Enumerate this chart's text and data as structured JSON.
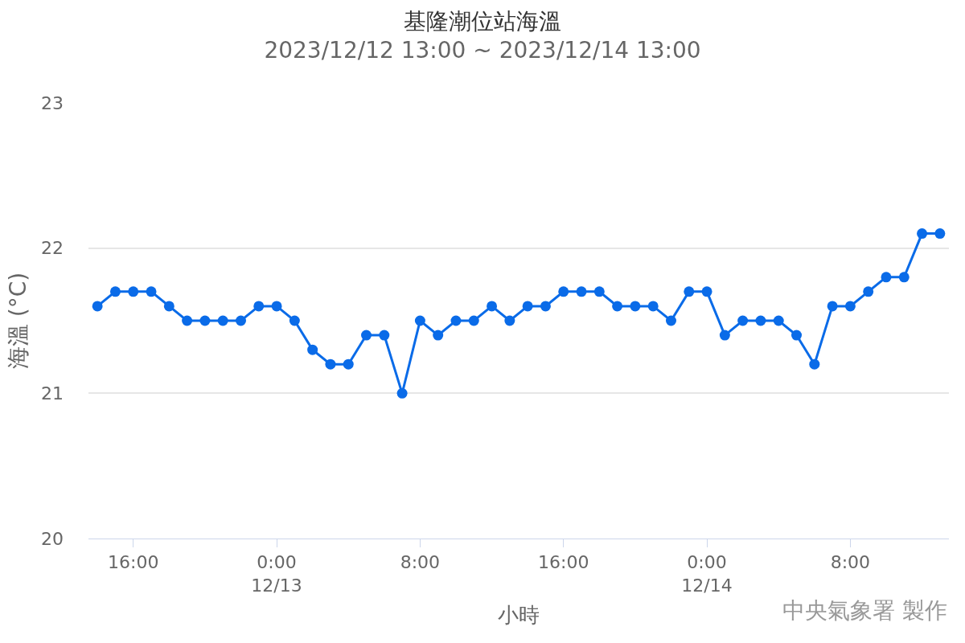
{
  "chart_data": {
    "type": "line",
    "title": "基隆潮位站海溫",
    "subtitle": "2023/12/12 13:00 ~ 2023/12/14 13:00",
    "xlabel": "小時",
    "ylabel": "海溫 (°C)",
    "x": [
      "2023-12-12T14:00",
      "2023-12-12T15:00",
      "2023-12-12T16:00",
      "2023-12-12T17:00",
      "2023-12-12T18:00",
      "2023-12-12T19:00",
      "2023-12-12T20:00",
      "2023-12-12T21:00",
      "2023-12-12T22:00",
      "2023-12-12T23:00",
      "2023-12-13T00:00",
      "2023-12-13T01:00",
      "2023-12-13T02:00",
      "2023-12-13T03:00",
      "2023-12-13T04:00",
      "2023-12-13T05:00",
      "2023-12-13T06:00",
      "2023-12-13T07:00",
      "2023-12-13T08:00",
      "2023-12-13T09:00",
      "2023-12-13T10:00",
      "2023-12-13T11:00",
      "2023-12-13T12:00",
      "2023-12-13T13:00",
      "2023-12-13T14:00",
      "2023-12-13T15:00",
      "2023-12-13T16:00",
      "2023-12-13T17:00",
      "2023-12-13T18:00",
      "2023-12-13T19:00",
      "2023-12-13T20:00",
      "2023-12-13T21:00",
      "2023-12-13T22:00",
      "2023-12-13T23:00",
      "2023-12-14T00:00",
      "2023-12-14T01:00",
      "2023-12-14T02:00",
      "2023-12-14T03:00",
      "2023-12-14T04:00",
      "2023-12-14T05:00",
      "2023-12-14T06:00",
      "2023-12-14T07:00",
      "2023-12-14T08:00",
      "2023-12-14T09:00",
      "2023-12-14T10:00",
      "2023-12-14T11:00",
      "2023-12-14T12:00",
      "2023-12-14T13:00"
    ],
    "series": [
      {
        "color": "#0a6be8",
        "values": [
          21.6,
          21.7,
          21.7,
          21.7,
          21.6,
          21.5,
          21.5,
          21.5,
          21.5,
          21.6,
          21.6,
          21.5,
          21.3,
          21.2,
          21.2,
          21.4,
          21.4,
          21.0,
          21.5,
          21.4,
          21.5,
          21.5,
          21.6,
          21.5,
          21.6,
          21.6,
          21.7,
          21.7,
          21.7,
          21.6,
          21.6,
          21.6,
          21.5,
          21.7,
          21.7,
          21.4,
          21.5,
          21.5,
          21.5,
          21.4,
          21.2,
          21.6,
          21.6,
          21.7,
          21.8,
          21.8,
          22.1,
          22.1
        ]
      }
    ],
    "xlim": [
      "2023-12-12T13:30",
      "2023-12-14T13:30"
    ],
    "xticks": [
      {
        "value": "2023-12-12T16:00",
        "label": "16:00"
      },
      {
        "value": "2023-12-13T00:00",
        "label": "0:00\n12/13"
      },
      {
        "value": "2023-12-13T08:00",
        "label": "8:00"
      },
      {
        "value": "2023-12-13T16:00",
        "label": "16:00"
      },
      {
        "value": "2023-12-14T00:00",
        "label": "0:00\n12/14"
      },
      {
        "value": "2023-12-14T08:00",
        "label": "8:00"
      }
    ],
    "ylim": [
      20,
      23
    ],
    "yticks": [
      20,
      21,
      22,
      23
    ],
    "grid": "y",
    "marker": "circle",
    "line_style": "solid",
    "annotations": [
      "中央氣象署 製作"
    ]
  }
}
